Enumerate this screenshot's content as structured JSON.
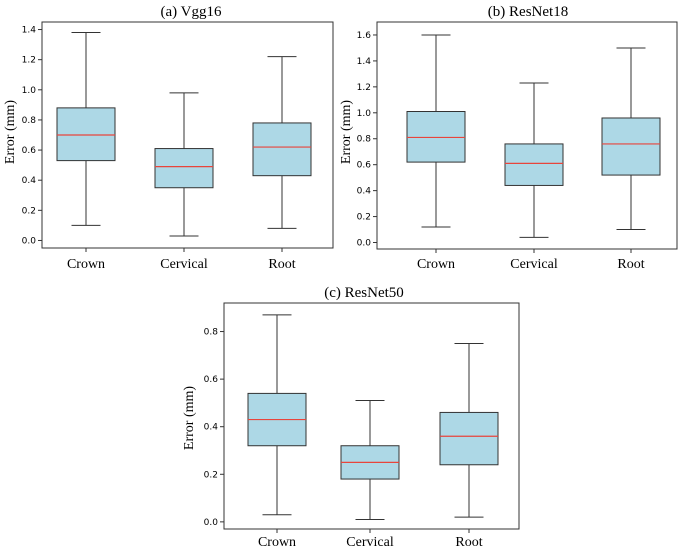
{
  "chart_data": [
    {
      "type": "boxplot",
      "title": "(a) Vgg16",
      "xlabel": "",
      "ylabel": "Error (mm)",
      "ylim": [
        -0.05,
        1.45
      ],
      "yticks": [
        "0.0",
        "0.2",
        "0.4",
        "0.6",
        "0.8",
        "1.0",
        "1.2",
        "1.4"
      ],
      "categories": [
        "Crown",
        "Cervical",
        "Root"
      ],
      "boxes": [
        {
          "min": 0.1,
          "q1": 0.53,
          "median": 0.7,
          "q3": 0.88,
          "max": 1.38
        },
        {
          "min": 0.03,
          "q1": 0.35,
          "median": 0.49,
          "q3": 0.61,
          "max": 0.98
        },
        {
          "min": 0.08,
          "q1": 0.43,
          "median": 0.62,
          "q3": 0.78,
          "max": 1.22
        }
      ]
    },
    {
      "type": "boxplot",
      "title": "(b) ResNet18",
      "xlabel": "",
      "ylabel": "Error (mm)",
      "ylim": [
        -0.05,
        1.7
      ],
      "yticks": [
        "0.0",
        "0.2",
        "0.4",
        "0.6",
        "0.8",
        "1.0",
        "1.2",
        "1.4",
        "1.6"
      ],
      "categories": [
        "Crown",
        "Cervical",
        "Root"
      ],
      "boxes": [
        {
          "min": 0.12,
          "q1": 0.62,
          "median": 0.81,
          "q3": 1.01,
          "max": 1.6
        },
        {
          "min": 0.04,
          "q1": 0.44,
          "median": 0.61,
          "q3": 0.76,
          "max": 1.23
        },
        {
          "min": 0.1,
          "q1": 0.52,
          "median": 0.76,
          "q3": 0.96,
          "max": 1.5
        }
      ]
    },
    {
      "type": "boxplot",
      "title": "(c) ResNet50",
      "xlabel": "",
      "ylabel": "Error (mm)",
      "ylim": [
        -0.03,
        0.92
      ],
      "yticks": [
        "0.0",
        "0.2",
        "0.4",
        "0.6",
        "0.8"
      ],
      "categories": [
        "Crown",
        "Cervical",
        "Root"
      ],
      "boxes": [
        {
          "min": 0.03,
          "q1": 0.32,
          "median": 0.43,
          "q3": 0.54,
          "max": 0.87
        },
        {
          "min": 0.01,
          "q1": 0.18,
          "median": 0.25,
          "q3": 0.32,
          "max": 0.51
        },
        {
          "min": 0.02,
          "q1": 0.24,
          "median": 0.36,
          "q3": 0.46,
          "max": 0.75
        }
      ]
    }
  ]
}
